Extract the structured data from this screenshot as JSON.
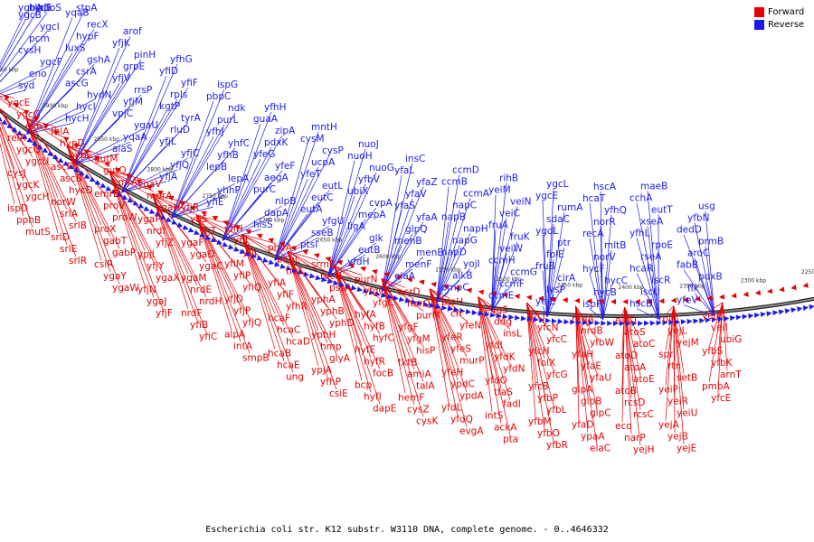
{
  "caption": "Escherichia coli str. K12 substr. W3110 DNA, complete genome. - 0..4646332",
  "legend": [
    {
      "label": "Forward",
      "color": "#e60000"
    },
    {
      "label": "Reverse",
      "color": "#1a1aee"
    }
  ],
  "colors": {
    "forward": "#e60000",
    "reverse": "#1a1aee",
    "backbone": "#222222"
  },
  "ticks": [
    "2950 kbp",
    "2900 kbp",
    "2850 kbp",
    "2800 kbp",
    "2750 kbp",
    "2700 kbp",
    "2650 kbp",
    "2600 kbp",
    "2550 kbp",
    "2500 kbp",
    "2450 kbp",
    "2400 kbp",
    "2350 kbp",
    "2300 kbp",
    "2250 kbp"
  ],
  "reverse_genes": [
    "syd",
    "eno",
    "ygcF",
    "cysH",
    "pcm",
    "ygcI",
    "ygcB",
    "nlpD",
    "rpoS",
    "ygbA",
    "hycE",
    "hycH",
    "hycI",
    "hydN",
    "ascG",
    "csrA",
    "gshA",
    "luxS",
    "hypF",
    "recX",
    "yqaB",
    "stpA",
    "alaS",
    "yqaA",
    "ygaU",
    "vpjC",
    "yfjM",
    "rrsP",
    "yfjV",
    "grpE",
    "pinH",
    "yfjK",
    "arof",
    "yfjA",
    "yfjQ",
    "yfjC",
    "yfjL",
    "rluD",
    "tyrA",
    "kgtP",
    "rpls",
    "yfiF",
    "yfiD",
    "yfhG",
    "yfiE",
    "yhhP",
    "lepA",
    "lepB",
    "yfhB",
    "yhfC",
    "yfhJ",
    "purL",
    "ndk",
    "pbpC",
    "ispG",
    "hisS",
    "dapA",
    "nlpB",
    "purC",
    "aegA",
    "yfeF",
    "yfeG",
    "pdxK",
    "zipA",
    "guaA",
    "yfhH",
    "ptsI",
    "sseB",
    "yfgU",
    "eutA",
    "eutC",
    "eutL",
    "yfeT",
    "ucpA",
    "cysP",
    "cysM",
    "mntH",
    "yfdH",
    "eutB",
    "glk",
    "ligA",
    "mepA",
    "cvpA",
    "ubiX",
    "yfbV",
    "nuoG",
    "nuoH",
    "nuoJ",
    "elaA",
    "menF",
    "menE",
    "menB",
    "glpQ",
    "yfaA",
    "yfaS",
    "yfaV",
    "yfaZ",
    "yfaL",
    "insC",
    "ompC",
    "alkB",
    "yojI",
    "napD",
    "napG",
    "napH",
    "napB",
    "napC",
    "ccmA",
    "ccmB",
    "ccmD",
    "ccmE",
    "ccmF",
    "ccmG",
    "ccmH",
    "veiW",
    "fruK",
    "fruA",
    "veiC",
    "veiN",
    "yeiM",
    "rihB",
    "yeiE",
    "lysP",
    "cirA",
    "fruB",
    "folE",
    "ptr",
    "ygdL",
    "sdaC",
    "rumA",
    "ygcE",
    "ygcL",
    "ispF",
    "hycB",
    "hycC",
    "hycF",
    "norV",
    "mltB",
    "recA",
    "norR",
    "yfhQ",
    "hcaT",
    "hscA",
    "hscB",
    "iscU",
    "iscR",
    "hcaR",
    "rseA",
    "rpoE",
    "yfhL",
    "xseA",
    "eutT",
    "cchA",
    "maeB",
    "yfeV",
    "flk",
    "pdxB",
    "fabB",
    "aroC",
    "prmB",
    "dedD",
    "yfbN",
    "usg"
  ],
  "forward_genes": [
    "yqcE",
    "ygcG",
    "exo",
    "relA",
    "ygcQ",
    "ygcU",
    "cysJ",
    "ygcK",
    "ygcH",
    "ispD",
    "pphB",
    "mutS",
    "fhlA",
    "hypD",
    "hypE",
    "ascF",
    "ascB",
    "hycD",
    "norW",
    "srlA",
    "srlB",
    "srlD",
    "srlE",
    "srlR",
    "gutM",
    "gutQ",
    "emrA",
    "emrB",
    "proV",
    "proW",
    "proX",
    "gabT",
    "gabP",
    "csiR",
    "ygaY",
    "ygaW",
    "ygaV",
    "mprA",
    "ygaH",
    "ygaP",
    "nrdI",
    "yfjZ",
    "ypjI",
    "yfjY",
    "ygaX",
    "yfjN",
    "ygaJ",
    "yfjF",
    "yfjR",
    "yfjS",
    "yfjT",
    "ygaF",
    "ygaD",
    "ygaC",
    "ygaM",
    "nrdE",
    "nrdH",
    "nrdF",
    "yfiB",
    "yfiC",
    "yfiH",
    "yfiI",
    "yfiJ",
    "yfiM",
    "yfiP",
    "yfiQ",
    "yfjD",
    "yfjP",
    "yfjQ",
    "alpA",
    "intA",
    "smpB",
    "pheA",
    "pheL",
    "trxC",
    "yfiA",
    "yfiF",
    "yfhR",
    "hcaF",
    "hcaC",
    "hcaD",
    "hcaB",
    "hcaE",
    "ung",
    "srmB",
    "recN",
    "pssA",
    "yphA",
    "yphB",
    "yphD",
    "yphH",
    "hmp",
    "glyA",
    "ypjA",
    "yfhP",
    "csiE",
    "purN",
    "yfgG",
    "yfgC",
    "hyfA",
    "hyfB",
    "hyfC",
    "hyfE",
    "hyfR",
    "focB",
    "bcp",
    "hyfI",
    "dapE",
    "acrD",
    "narQ",
    "purM",
    "yfgF",
    "yfgM",
    "hisP",
    "tktB",
    "amiA",
    "talA",
    "hemF",
    "cysZ",
    "cysK",
    "ptsH",
    "crr",
    "yfeN",
    "yfeR",
    "yfeS",
    "murP",
    "yfeH",
    "ypdC",
    "ypdA",
    "yfdL",
    "yfdQ",
    "evgA",
    "evgS",
    "ddg",
    "insL",
    "yfdI",
    "yfdK",
    "yfdN",
    "yfdO",
    "tfaS",
    "fadI",
    "intS",
    "ackA",
    "pta",
    "yfcJ",
    "yfcN",
    "yfcC",
    "yfcH",
    "folX",
    "yfcG",
    "yfcB",
    "yfbP",
    "yfbL",
    "yfbM",
    "yfbO",
    "yfbR",
    "nrdA",
    "nrdB",
    "yfbW",
    "yfaH",
    "yfaE",
    "yfaU",
    "glpA",
    "glpB",
    "glpC",
    "yfaD",
    "ypaA",
    "elaC",
    "elaD",
    "atoS",
    "atoC",
    "atoD",
    "atoA",
    "atoE",
    "atoB",
    "rcsD",
    "rcsC",
    "eco",
    "narP",
    "yejH",
    "rplY",
    "yejL",
    "yejM",
    "spr",
    "rtn",
    "setB",
    "yeiP",
    "yeiR",
    "yeiU",
    "yejA",
    "yejB",
    "yejE",
    "yejF",
    "veiI",
    "ubiG",
    "yfbS",
    "yfbK",
    "arnT",
    "pmbA",
    "yfcE"
  ]
}
